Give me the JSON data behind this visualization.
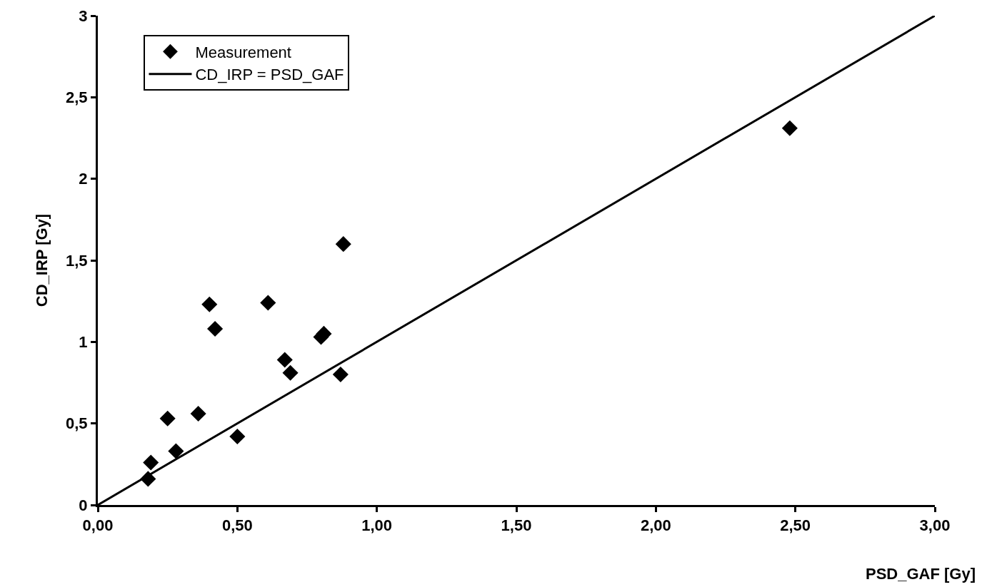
{
  "chart_data": {
    "type": "scatter",
    "xlabel": "PSD_GAF [Gy]",
    "ylabel": "CD_IRP [Gy]",
    "xlim": [
      0,
      3
    ],
    "xticks": [
      {
        "value": 0,
        "label": "0,00"
      },
      {
        "value": 0.5,
        "label": "0,50"
      },
      {
        "value": 1,
        "label": "1,00"
      },
      {
        "value": 1.5,
        "label": "1,50"
      },
      {
        "value": 2,
        "label": "2,00"
      },
      {
        "value": 2.5,
        "label": "2,50"
      },
      {
        "value": 3,
        "label": "3,00"
      }
    ],
    "ylim": [
      0,
      3
    ],
    "yticks": [
      0,
      {
        "value": 0.5,
        "label": "0,5"
      },
      1,
      {
        "value": 1.5,
        "label": "1,5"
      },
      2,
      {
        "value": 2.5,
        "label": "2,5"
      },
      3
    ],
    "grid": false,
    "legend": "top left",
    "marker": "diamond",
    "series": [
      {
        "name": "Measurement",
        "color": "#000000",
        "x": [
          0.18,
          0.19,
          0.25,
          0.28,
          0.36,
          0.4,
          0.42,
          0.5,
          0.61,
          0.67,
          0.69,
          0.8,
          0.81,
          0.87,
          0.88,
          2.48
        ],
        "values": [
          0.16,
          0.26,
          0.53,
          0.33,
          0.56,
          1.23,
          1.08,
          0.42,
          1.24,
          0.89,
          0.81,
          1.03,
          1.05,
          0.8,
          1.6,
          2.31
        ]
      },
      {
        "name": "CD_IRP = PSD_GAF",
        "type": "line",
        "color": "#000000",
        "marker": "none",
        "line_style": "solid",
        "x": [
          0,
          3
        ],
        "values": [
          0,
          3
        ]
      }
    ]
  }
}
